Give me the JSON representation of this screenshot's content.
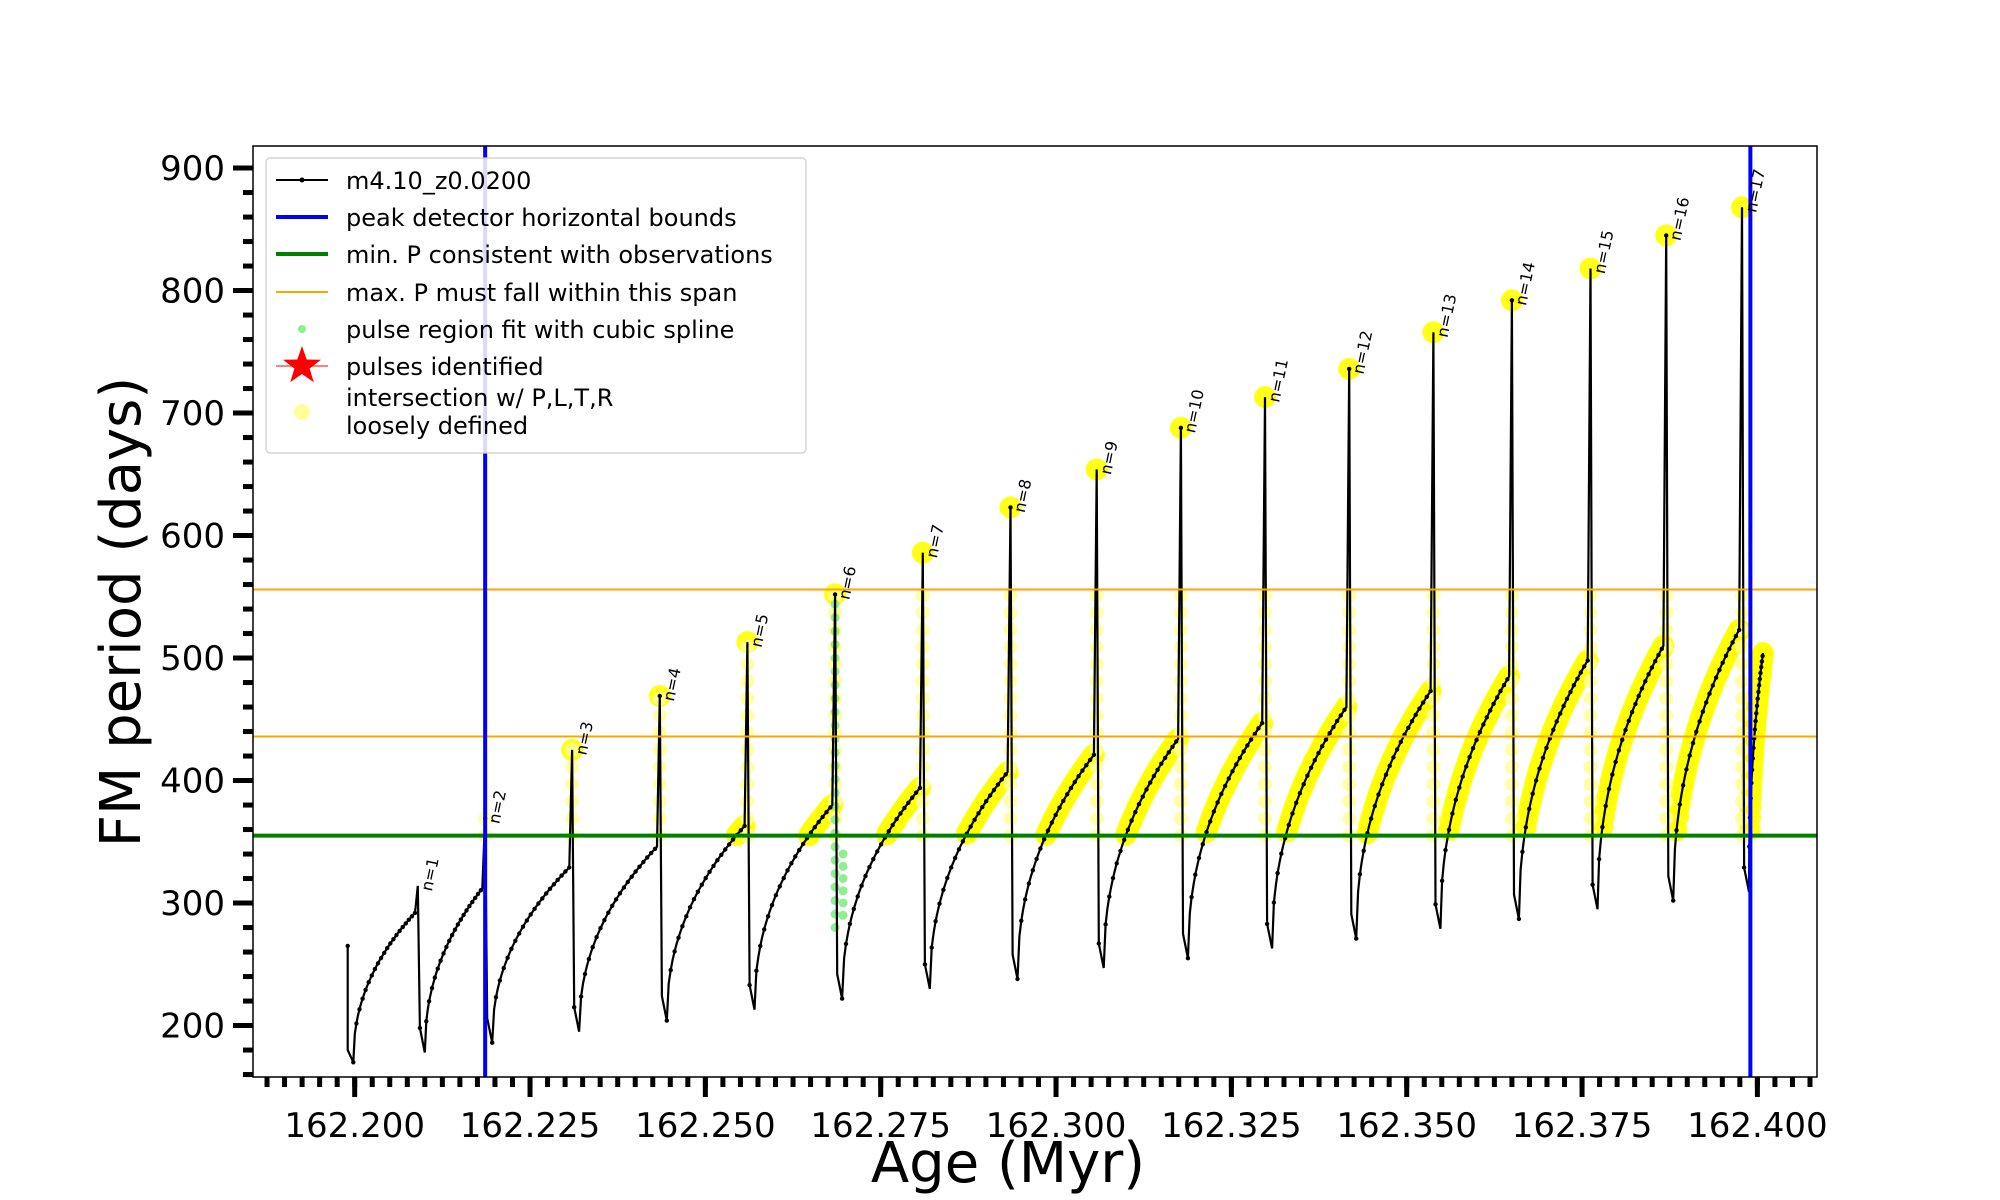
{
  "chart_data": {
    "type": "line",
    "xlabel": "Age (Myr)",
    "ylabel": "FM period (days)",
    "xlim": [
      162.1855,
      162.4085
    ],
    "ylim": [
      158,
      918
    ],
    "xticks": [
      162.2,
      162.225,
      162.25,
      162.275,
      162.3,
      162.325,
      162.35,
      162.375,
      162.4
    ],
    "xtick_labels": [
      "162.200",
      "162.225",
      "162.250",
      "162.275",
      "162.300",
      "162.325",
      "162.350",
      "162.375",
      "162.400"
    ],
    "yticks": [
      200,
      300,
      400,
      500,
      600,
      700,
      800,
      900
    ],
    "ytick_labels": [
      "200",
      "300",
      "400",
      "500",
      "600",
      "700",
      "800",
      "900"
    ],
    "legend_position": "upper-left",
    "legend": [
      {
        "label": "m4.10_z0.0200",
        "kind": "line-marker",
        "color": "#000000"
      },
      {
        "label": "peak detector horizontal bounds",
        "kind": "line",
        "color": "#0000ff"
      },
      {
        "label": "min. P consistent with observations",
        "kind": "line",
        "color": "#008000"
      },
      {
        "label": "max. P must fall within this span",
        "kind": "thin-line",
        "color": "#ffa500"
      },
      {
        "label": "pulse region fit with cubic spline",
        "kind": "dot",
        "color": "#90ee90"
      },
      {
        "label": "pulses identified",
        "kind": "star",
        "color": "#ff0000"
      },
      {
        "label": "intersection w/ P,L,T,R",
        "label2": "loosely defined",
        "kind": "big-dot",
        "color": "#ffff99"
      }
    ],
    "vertical_lines": [
      162.2186,
      162.399
    ],
    "horizontal_lines": {
      "min_p": 355,
      "max_p_span": [
        436,
        556
      ]
    },
    "colors": {
      "series": "#000000",
      "bounds": "#0000ff",
      "min_p": "#008000",
      "max_p": "#ffa500",
      "spline": "#90ee90",
      "intersection": "#ffff00",
      "intersection_light": "#ffff99"
    },
    "pulses": [
      {
        "n": "n=1",
        "age": 162.209,
        "peak": 314,
        "min": 178,
        "rise_end": 292
      },
      {
        "n": "n=2",
        "age": 162.2186,
        "peak": 369,
        "min": 186,
        "rise_end": 312
      },
      {
        "n": "n=3",
        "age": 162.231,
        "peak": 425,
        "min": 195,
        "rise_end": 329
      },
      {
        "n": "n=4",
        "age": 162.2435,
        "peak": 469,
        "min": 204,
        "rise_end": 346
      },
      {
        "n": "n=5",
        "age": 162.256,
        "peak": 513,
        "min": 213,
        "rise_end": 363
      },
      {
        "n": "n=6",
        "age": 162.2685,
        "peak": 552,
        "min": 222,
        "rise_end": 380
      },
      {
        "n": "n=7",
        "age": 162.281,
        "peak": 586,
        "min": 230,
        "rise_end": 394
      },
      {
        "n": "n=8",
        "age": 162.2935,
        "peak": 623,
        "min": 238,
        "rise_end": 407
      },
      {
        "n": "n=9",
        "age": 162.3058,
        "peak": 654,
        "min": 247,
        "rise_end": 421
      },
      {
        "n": "n=10",
        "age": 162.3178,
        "peak": 688,
        "min": 255,
        "rise_end": 434
      },
      {
        "n": "n=11",
        "age": 162.3298,
        "peak": 713,
        "min": 263,
        "rise_end": 447
      },
      {
        "n": "n=12",
        "age": 162.3418,
        "peak": 736,
        "min": 271,
        "rise_end": 460
      },
      {
        "n": "n=13",
        "age": 162.3538,
        "peak": 766,
        "min": 279,
        "rise_end": 473
      },
      {
        "n": "n=14",
        "age": 162.365,
        "peak": 792,
        "min": 287,
        "rise_end": 485
      },
      {
        "n": "n=15",
        "age": 162.3762,
        "peak": 818,
        "min": 295,
        "rise_end": 498
      },
      {
        "n": "n=16",
        "age": 162.387,
        "peak": 845,
        "min": 302,
        "rise_end": 510
      },
      {
        "n": "n=17",
        "age": 162.3978,
        "peak": 868,
        "min": 309,
        "rise_end": 523
      }
    ],
    "series_start": {
      "age": 162.199,
      "period": 265
    },
    "series_end": {
      "age": 162.4008,
      "period": 504
    }
  }
}
